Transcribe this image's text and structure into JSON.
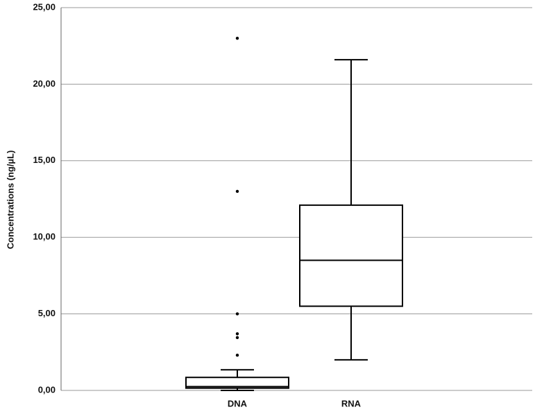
{
  "chart_data": {
    "type": "box",
    "y_label": "Concentrations (ng/µL)",
    "boxes": [
      {
        "category": "DNA",
        "whisker_low": 0,
        "q1": 0.15,
        "median": 0.25,
        "q3": 0.85,
        "whisker_high": 1.35,
        "outliers": [
          23,
          13,
          5,
          3.7,
          3.45,
          2.3
        ]
      },
      {
        "category": "RNA",
        "whisker_low": 2,
        "q1": 5.5,
        "median": 8.5,
        "q3": 12.1,
        "whisker_high": 21.6,
        "outliers": []
      }
    ],
    "ylim": [
      0,
      25
    ],
    "yticks": [
      {
        "value": 0,
        "label": "0,00"
      },
      {
        "value": 5,
        "label": "5,00"
      },
      {
        "value": 10,
        "label": "10,00"
      },
      {
        "value": 15,
        "label": "15,00"
      },
      {
        "value": 20,
        "label": "20,00"
      },
      {
        "value": 25,
        "label": "25,00"
      }
    ],
    "grid": true,
    "color": "#000000"
  }
}
